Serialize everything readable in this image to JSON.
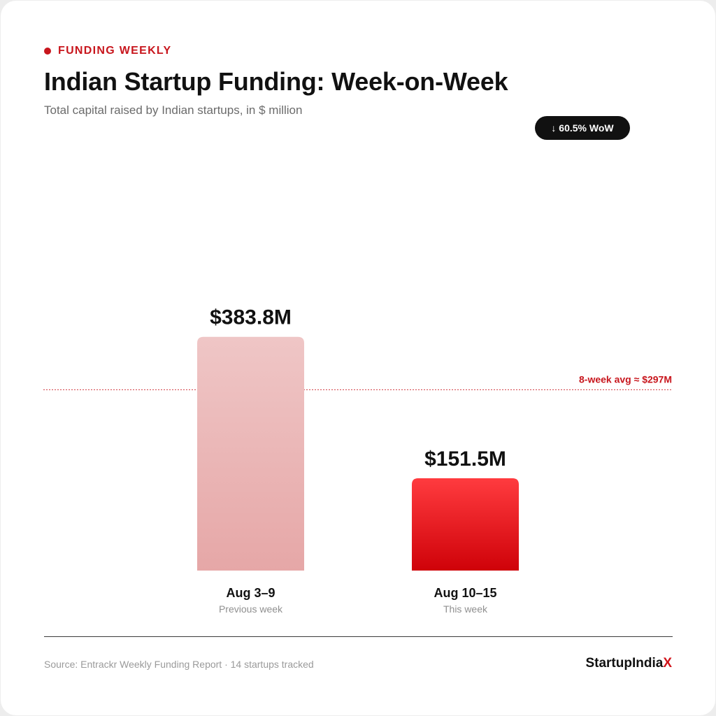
{
  "header": {
    "eyebrow": "FUNDING WEEKLY",
    "title": "Indian Startup Funding: Week-on-Week",
    "subtitle": "Total capital raised by Indian startups, in $ million"
  },
  "badge": {
    "text": "↓ 60.5% WoW"
  },
  "chart_data": {
    "type": "bar",
    "categories": [
      "Aug 3–9",
      "Aug 10–15"
    ],
    "sublabels": [
      "Previous week",
      "This week"
    ],
    "values": [
      383.8,
      151.5
    ],
    "value_labels": [
      "$383.8M",
      "$151.5M"
    ],
    "ylim": [
      0,
      500
    ],
    "reference_line": {
      "value": 297,
      "label": "8-week avg ≈ $297M"
    },
    "grid": false,
    "colors": {
      "previous": "#e9a8a8",
      "current": "#d0021b",
      "reference": "#c8161d"
    }
  },
  "footer": {
    "source": "Source: Entrackr Weekly Funding Report · 14 startups tracked",
    "brand_main": "StartupIndia",
    "brand_accent": "X"
  }
}
